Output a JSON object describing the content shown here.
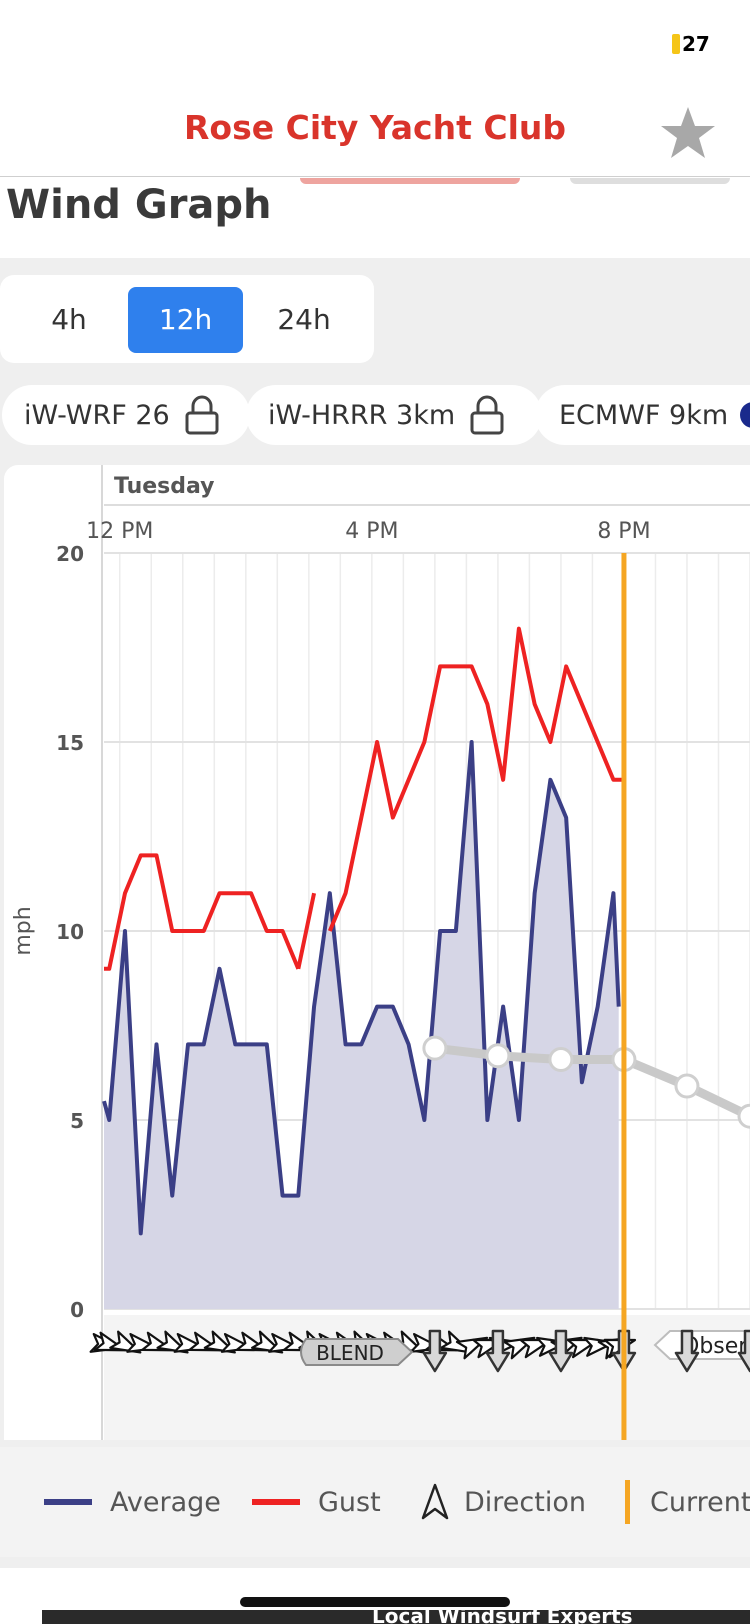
{
  "status_bar": {
    "battery_level": "27"
  },
  "nav": {
    "title": "Rose City Yacht Club",
    "favorite_icon": "star-icon"
  },
  "page": {
    "heading": "Wind Graph"
  },
  "range_tabs": {
    "items": [
      "4h",
      "12h",
      "24h"
    ],
    "selected": "12h"
  },
  "model_chips": [
    {
      "label": "iW-WRF 26",
      "icon": "lock-icon"
    },
    {
      "label": "iW-HRRR 3km",
      "icon": "lock-icon"
    },
    {
      "label": "ECMWF 9km",
      "icon": "dot-icon"
    }
  ],
  "chart_data": {
    "type": "line",
    "day_label": "Tuesday",
    "x_tick_labels": [
      "12 PM",
      "4 PM",
      "8 PM"
    ],
    "xlim_hours": [
      11.75,
      22
    ],
    "ylabel": "mph",
    "ylim": [
      0,
      20
    ],
    "y_ticks": [
      0,
      5,
      10,
      15,
      20
    ],
    "grid": true,
    "current_time_hours": 20,
    "series": [
      {
        "name": "Average",
        "color": "#3b3f86",
        "fill": "#d6d6e6",
        "x_hours": [
          11.75,
          11.833,
          12.083,
          12.333,
          12.583,
          12.833,
          13.083,
          13.333,
          13.583,
          13.833,
          14.083,
          14.333,
          14.583,
          14.833,
          15.083,
          15.333,
          15.583,
          15.833,
          16.083,
          16.333,
          16.583,
          16.833,
          17.083,
          17.333,
          17.583,
          17.833,
          18.083,
          18.333,
          18.583,
          18.833,
          19.083,
          19.333,
          19.583,
          19.833,
          19.917
        ],
        "values": [
          5.5,
          5,
          10,
          2,
          7,
          3,
          7,
          7,
          9,
          7,
          7,
          7,
          3,
          3,
          8,
          11,
          7,
          7,
          8,
          8,
          7,
          5,
          10,
          10,
          15,
          5,
          8,
          5,
          11,
          14,
          13,
          6,
          8,
          11,
          8
        ]
      },
      {
        "name": "Gust",
        "color": "#ee2222",
        "segments": [
          {
            "x_hours": [
              11.75,
              11.833,
              12.083,
              12.333,
              12.583,
              12.833,
              13.083,
              13.333,
              13.583,
              13.833,
              14.083,
              14.333,
              14.583,
              14.833
            ],
            "values": [
              9,
              9,
              11,
              12,
              12,
              10,
              10,
              10,
              11,
              11,
              11,
              10,
              10,
              9
            ]
          },
          {
            "x_hours": [
              14.833,
              15.083
            ],
            "values": [
              9,
              11
            ]
          },
          {
            "x_hours": [
              15.333,
              15.583,
              15.833,
              16.083,
              16.333,
              16.583,
              16.833,
              17.083,
              17.333,
              17.583,
              17.833,
              18.083,
              18.333,
              18.583,
              18.833,
              19.083,
              19.333,
              19.583,
              19.833,
              20.0
            ],
            "values": [
              10,
              11,
              13,
              15,
              13,
              14,
              15,
              17,
              17,
              17,
              16,
              14,
              18,
              16,
              15,
              17,
              16,
              15,
              14,
              14
            ]
          }
        ]
      },
      {
        "name": "Observations",
        "color": "#c9c9c9",
        "x_hours": [
          17.0,
          18.0,
          19.0,
          20.0,
          21.0,
          22.0
        ],
        "values": [
          6.9,
          6.7,
          6.6,
          6.6,
          5.9,
          5.1
        ]
      }
    ],
    "direction_strip_label": "Obser",
    "blend_label": "BLEND",
    "forecast_arrow_hours": [
      17.0,
      18.0,
      19.0,
      20.0,
      21.0,
      22.0
    ]
  },
  "legend": {
    "items": [
      {
        "label": "Average",
        "color": "#3b3f86"
      },
      {
        "label": "Gust",
        "color": "#ee2222"
      },
      {
        "label": "Direction",
        "color": "#333333"
      },
      {
        "label": "Current",
        "color": "#f5a623"
      }
    ]
  },
  "ad": {
    "text": "Local Windsurf Experts"
  }
}
